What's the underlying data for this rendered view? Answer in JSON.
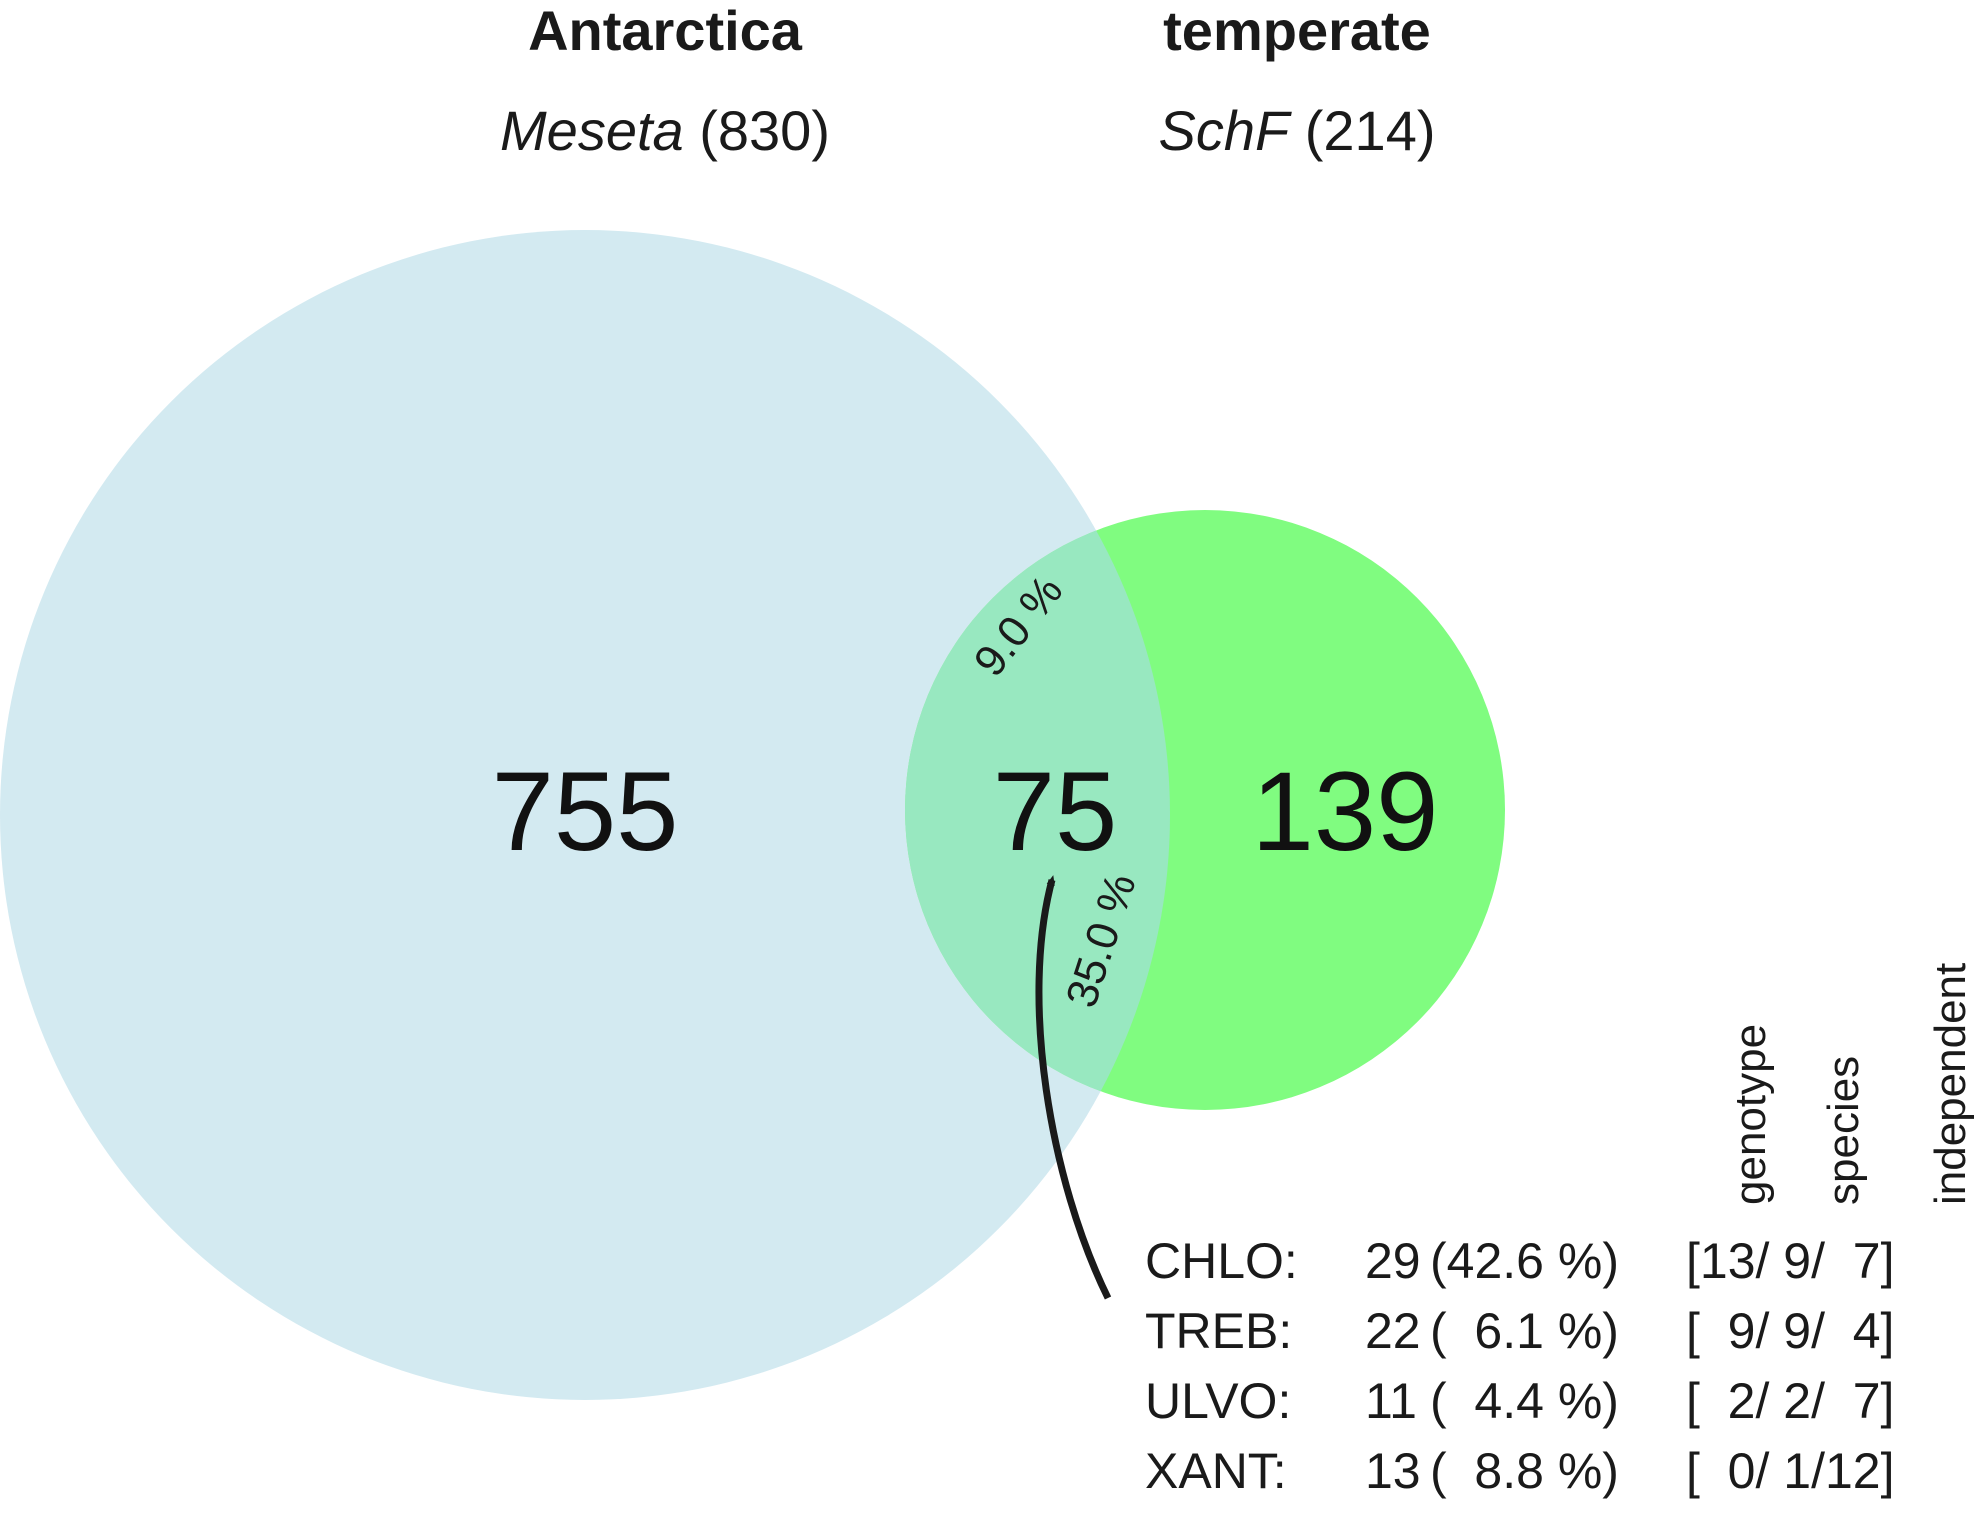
{
  "titles": {
    "left": {
      "heading": "Antarctica",
      "subtitle_italic": "Meseta",
      "subtitle_count": "(830)"
    },
    "right": {
      "heading": "temperate",
      "subtitle_italic": "SchF",
      "subtitle_count": "(214)"
    }
  },
  "venn": {
    "left_only": "755",
    "overlap": "75",
    "right_only": "139",
    "pct_of_left": "9.0 %",
    "pct_of_right": "35.0 %",
    "colors": {
      "left_circle": "#d3eaf1",
      "right_circle": "#80fc80",
      "overlap": "#98e8c0",
      "arrow": "#1a1a1a"
    }
  },
  "breakdown": {
    "column_headers": [
      "genotype",
      "species",
      "independent"
    ],
    "rows": [
      {
        "group": "CHLO:",
        "count": "29",
        "pct": "(42.6 %)",
        "bracket": "[13/ 9/  7]"
      },
      {
        "group": "TREB:",
        "count": "22",
        "pct": "(  6.1 %)",
        "bracket": "[  9/ 9/  4]"
      },
      {
        "group": "ULVO:",
        "count": "11",
        "pct": "(  4.4 %)",
        "bracket": "[  2/ 2/  7]"
      },
      {
        "group": "XANT:",
        "count": "13",
        "pct": "(  8.8 %)",
        "bracket": "[  0/ 1/12]"
      }
    ]
  }
}
